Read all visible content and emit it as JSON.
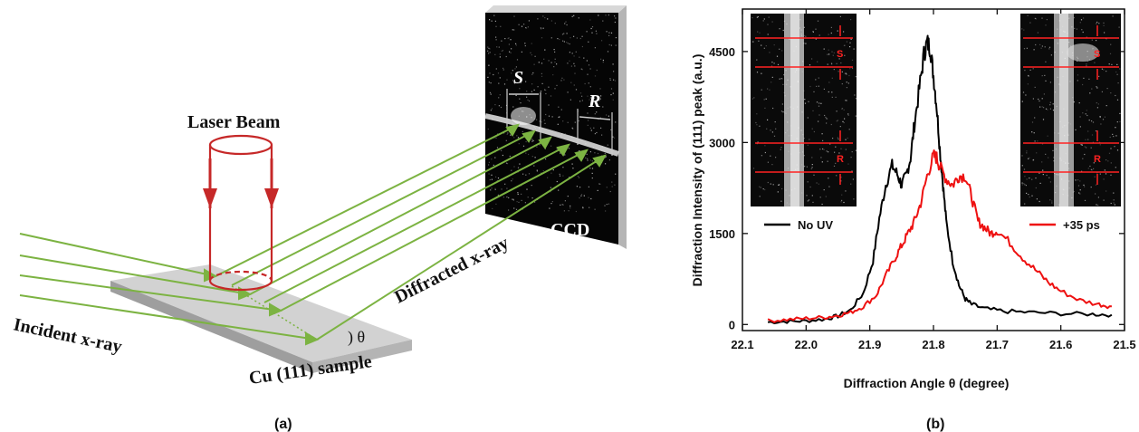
{
  "panel_a": {
    "caption": "(a)",
    "laser_label": "Laser Beam",
    "incident_label": "Incident x-ray",
    "diffracted_label": "Diffracted x-ray",
    "sample_label": "Cu (111) sample",
    "ccd_label": "CCD",
    "s_label": "S",
    "r_label": "R",
    "theta_label": ") θ",
    "colors": {
      "beam": "#7cb342",
      "laser": "#c62828",
      "ccd": "#101010",
      "sample": "#c9c9c9"
    }
  },
  "panel_b": {
    "caption": "(b)",
    "inset_left": {
      "s": "S",
      "r": "R"
    },
    "inset_right": {
      "s": "S",
      "r": "R"
    }
  },
  "chart_data": {
    "type": "line",
    "xlabel": "Diffraction Angle θ  (degree)",
    "ylabel": "Diffraction Intensity of (111) peak (a.u.)",
    "xlim": [
      22.1,
      21.5
    ],
    "ylim": [
      -100,
      5200
    ],
    "x_ticks": [
      22.1,
      22.0,
      21.9,
      21.8,
      21.7,
      21.6,
      21.5
    ],
    "x_tick_labels": [
      "22.1",
      "22.0",
      "21.9",
      "21.8",
      "21.7",
      "21.6",
      "21.5"
    ],
    "y_ticks": [
      0,
      1500,
      3000,
      4500
    ],
    "y_tick_labels": [
      "0",
      "1500",
      "3000",
      "4500"
    ],
    "x_reversed": true,
    "series": [
      {
        "name": "No UV",
        "color": "#000000",
        "x": [
          22.06,
          22.03,
          22.0,
          21.97,
          21.95,
          21.93,
          21.91,
          21.895,
          21.885,
          21.875,
          21.865,
          21.857,
          21.85,
          21.843,
          21.836,
          21.83,
          21.822,
          21.815,
          21.81,
          21.805,
          21.8,
          21.795,
          21.79,
          21.785,
          21.78,
          21.77,
          21.76,
          21.75,
          21.74,
          21.72,
          21.69,
          21.65,
          21.6,
          21.55,
          21.52
        ],
        "y": [
          40,
          50,
          60,
          90,
          140,
          240,
          520,
          1050,
          1750,
          2300,
          2620,
          2480,
          2300,
          2450,
          2750,
          3300,
          3900,
          4450,
          4650,
          4560,
          4100,
          3600,
          2900,
          2300,
          1700,
          1050,
          650,
          420,
          330,
          260,
          220,
          200,
          180,
          170,
          160
        ]
      },
      {
        "name": "+35 ps",
        "color": "#ee1111",
        "x": [
          22.06,
          22.03,
          22.0,
          21.97,
          21.95,
          21.93,
          21.91,
          21.89,
          21.875,
          21.86,
          21.85,
          21.84,
          21.83,
          21.82,
          21.81,
          21.8,
          21.795,
          21.79,
          21.78,
          21.77,
          21.76,
          21.75,
          21.74,
          21.73,
          21.72,
          21.71,
          21.7,
          21.68,
          21.66,
          21.64,
          21.62,
          21.6,
          21.57,
          21.54,
          21.52
        ],
        "y": [
          60,
          80,
          100,
          120,
          150,
          200,
          300,
          480,
          800,
          1100,
          1300,
          1500,
          1700,
          2000,
          2450,
          2780,
          2750,
          2600,
          2400,
          2300,
          2450,
          2450,
          2100,
          1700,
          1600,
          1500,
          1550,
          1350,
          1100,
          900,
          700,
          550,
          400,
          330,
          300
        ]
      }
    ],
    "legend": [
      {
        "label": "No UV",
        "color": "#000000",
        "position": "left"
      },
      {
        "label": "+35 ps",
        "color": "#ee1111",
        "position": "right"
      }
    ]
  }
}
